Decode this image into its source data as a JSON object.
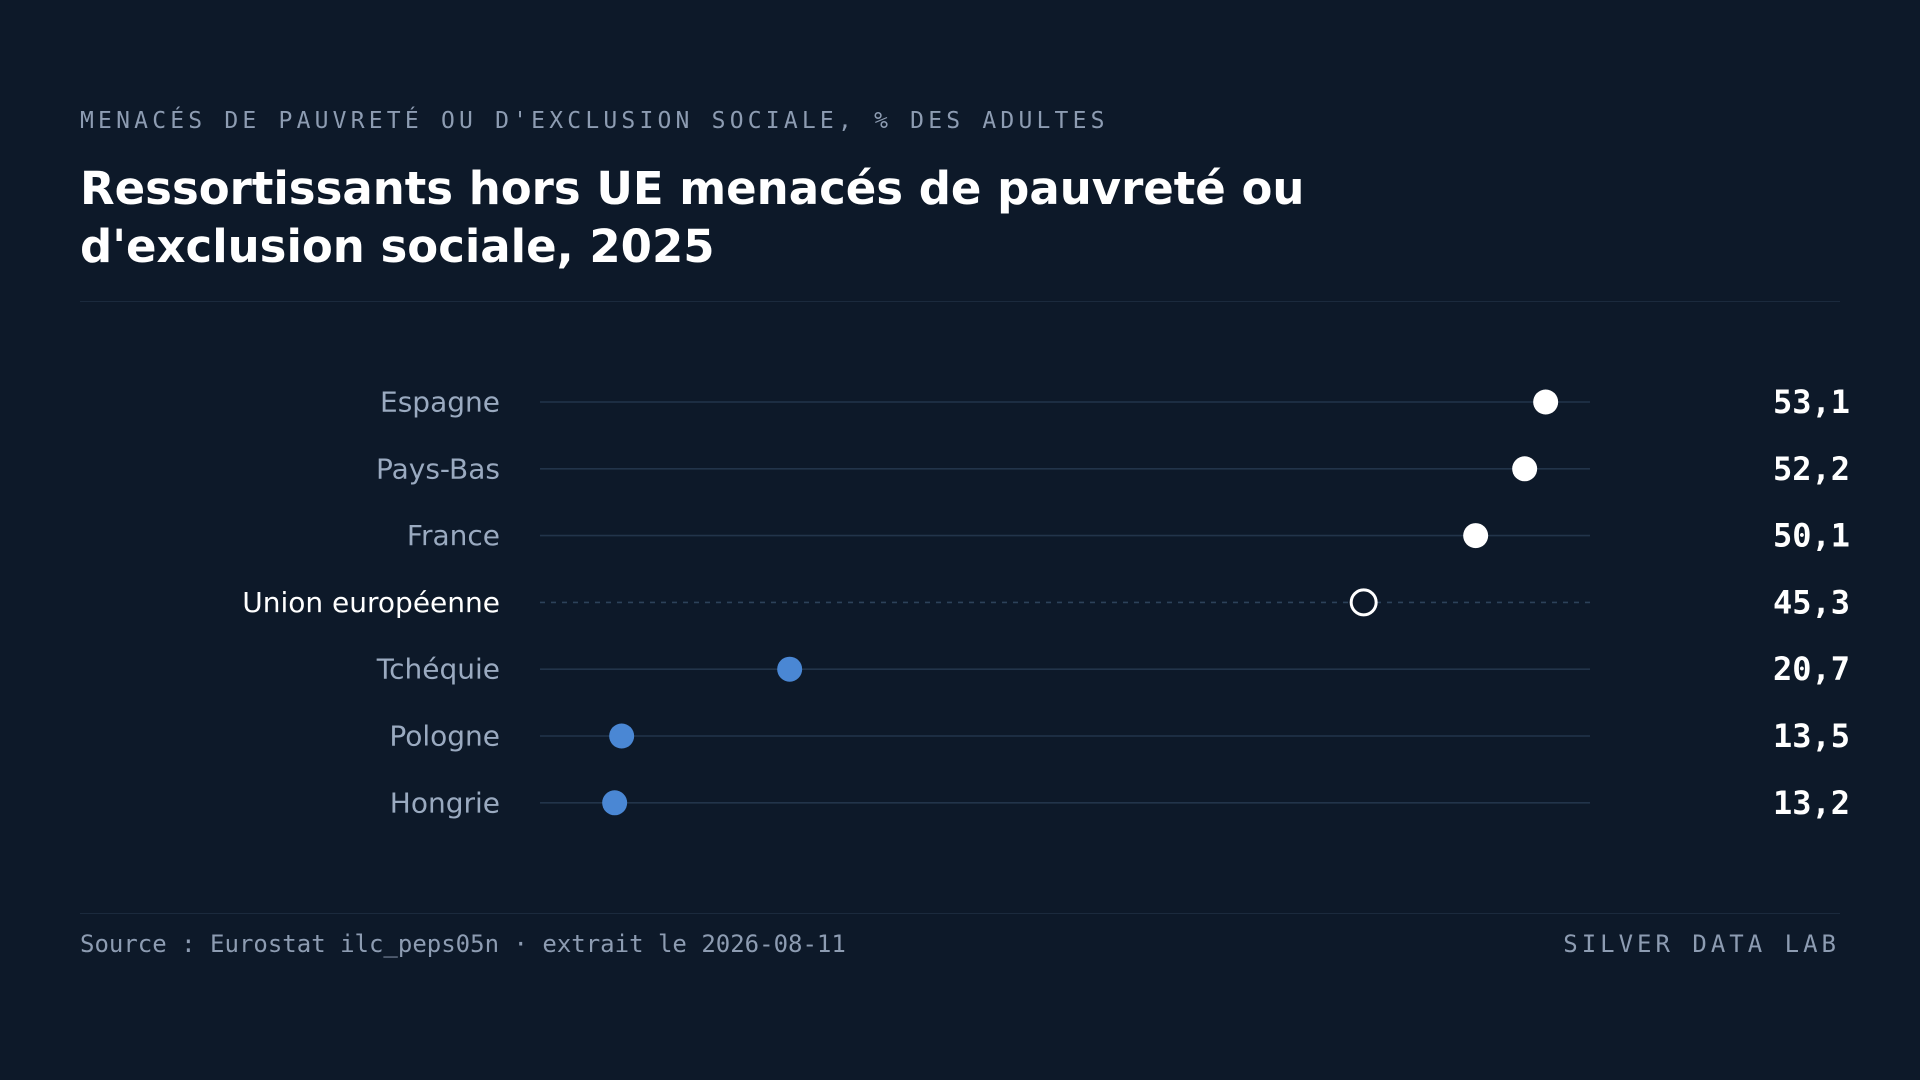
{
  "header": {
    "kicker": "MENACÉS DE PAUVRETÉ OU D'EXCLUSION SOCIALE, % DES ADULTES",
    "title": "Ressortissants hors UE menacés de pauvreté ou d'exclusion sociale, 2025"
  },
  "footer": {
    "source": "Source : Eurostat ilc_peps05n · extrait le 2026-08-11",
    "brand": "SILVER DATA LAB"
  },
  "colors": {
    "background": "#0d1929",
    "high": "#ffffff",
    "low": "#4a87d4",
    "reference": "#ffffff",
    "label": "#9aaac0",
    "reference_label": "#ffffff",
    "track": "#22344a"
  },
  "chart_data": {
    "type": "dot",
    "xlim": [
      10,
      55
    ],
    "rows": [
      {
        "label": "Espagne",
        "value": 53.1,
        "display": "53,1",
        "group": "high"
      },
      {
        "label": "Pays-Bas",
        "value": 52.2,
        "display": "52,2",
        "group": "high"
      },
      {
        "label": "France",
        "value": 50.1,
        "display": "50,1",
        "group": "high"
      },
      {
        "label": "Union européenne",
        "value": 45.3,
        "display": "45,3",
        "group": "reference"
      },
      {
        "label": "Tchéquie",
        "value": 20.7,
        "display": "20,7",
        "group": "low"
      },
      {
        "label": "Pologne",
        "value": 13.5,
        "display": "13,5",
        "group": "low"
      },
      {
        "label": "Hongrie",
        "value": 13.2,
        "display": "13,2",
        "group": "low"
      }
    ]
  }
}
